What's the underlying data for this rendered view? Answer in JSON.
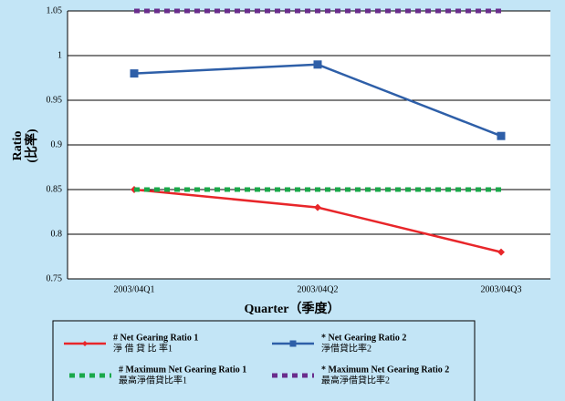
{
  "chart_data": {
    "type": "line",
    "xlabel": "Quarter（季度）",
    "ylabel": "Ratio",
    "ylabel_zh": "(比率)",
    "categories": [
      "2003/04Q1",
      "2003/04Q2",
      "2003/04Q3"
    ],
    "series": [
      {
        "name": "# Net Gearing Ratio 1",
        "name_zh": "淨 借 貸 比 率1",
        "color": "#e8262a",
        "marker": "diamond",
        "dash": false,
        "values": [
          0.85,
          0.83,
          0.78
        ]
      },
      {
        "name": "* Net Gearing Ratio 2",
        "name_zh": "淨借貸比率2",
        "color": "#2e5fa8",
        "marker": "square",
        "dash": false,
        "values": [
          0.98,
          0.99,
          0.91
        ]
      },
      {
        "name": "# Maximum Net Gearing Ratio 1",
        "name_zh": "最高淨借貸比率1",
        "color": "#1aa84a",
        "marker": "none",
        "dash": true,
        "values": [
          0.85,
          0.85,
          0.85
        ]
      },
      {
        "name": "* Maximum Net Gearing Ratio 2",
        "name_zh": "最高淨借貸比率2",
        "color": "#6a2d8c",
        "marker": "none",
        "dash": true,
        "values": [
          1.05,
          1.05,
          1.05
        ]
      }
    ],
    "ylim": [
      0.75,
      1.05
    ],
    "yticks": [
      0.75,
      0.8,
      0.85,
      0.9,
      0.95,
      1,
      1.05
    ],
    "grid": true
  }
}
